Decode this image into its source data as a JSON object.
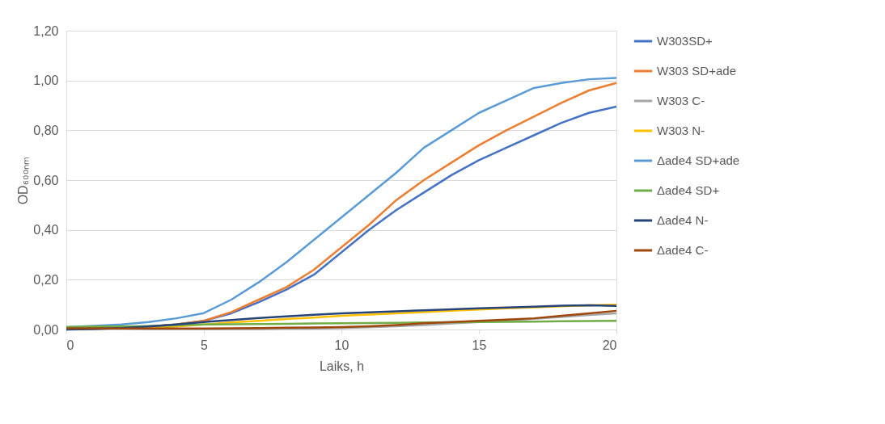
{
  "chart_data": {
    "type": "line",
    "xlabel": "Laiks, h",
    "ylabel": "OD₆₀₀ₙₘ",
    "x": [
      0,
      1,
      2,
      3,
      4,
      5,
      6,
      7,
      8,
      9,
      10,
      11,
      12,
      13,
      14,
      15,
      16,
      17,
      18,
      19,
      20
    ],
    "xlim": [
      0,
      20
    ],
    "xticks": [
      0,
      5,
      10,
      15,
      20
    ],
    "ylim": [
      0,
      1.2
    ],
    "yticks": [
      {
        "value": 0,
        "label": "0,00"
      },
      {
        "value": 0.2,
        "label": "0,20"
      },
      {
        "value": 0.4,
        "label": "0,40"
      },
      {
        "value": 0.6,
        "label": "0,60"
      },
      {
        "value": 0.8,
        "label": "0,80"
      },
      {
        "value": 1.0,
        "label": "1,00"
      },
      {
        "value": 1.2,
        "label": "1,20"
      }
    ],
    "grid": "y",
    "legend": "right",
    "line_style": "solid",
    "marker": "none",
    "series": [
      {
        "name": "W303SD+",
        "color": "#4472c4",
        "values": [
          0.005,
          0.005,
          0.008,
          0.012,
          0.02,
          0.035,
          0.065,
          0.11,
          0.16,
          0.22,
          0.31,
          0.4,
          0.48,
          0.55,
          0.62,
          0.68,
          0.73,
          0.78,
          0.83,
          0.87,
          0.895
        ]
      },
      {
        "name": "W303 SD+ade",
        "color": "#ed7d31",
        "values": [
          null,
          null,
          null,
          0.012,
          0.02,
          0.035,
          0.07,
          0.12,
          0.17,
          0.24,
          0.33,
          0.42,
          0.52,
          0.6,
          0.67,
          0.74,
          0.8,
          0.855,
          0.91,
          0.96,
          0.99
        ]
      },
      {
        "name": "W303 C-",
        "color": "#a5a5a5",
        "values": [
          0.005,
          0.004,
          0.003,
          0.002,
          0.002,
          0.002,
          0.002,
          0.002,
          0.003,
          0.004,
          0.006,
          0.009,
          0.013,
          0.018,
          0.024,
          0.03,
          0.036,
          0.043,
          0.05,
          0.058,
          0.065
        ]
      },
      {
        "name": "W303 N-",
        "color": "#ffc000",
        "values": [
          null,
          null,
          0.004,
          0.006,
          0.012,
          0.02,
          0.028,
          0.035,
          0.042,
          0.048,
          0.055,
          0.06,
          0.065,
          0.07,
          0.075,
          0.08,
          0.085,
          0.089,
          0.093,
          0.097,
          0.1
        ]
      },
      {
        "name": "Δade4 SD+ade",
        "color": "#5b9bd5",
        "values": [
          0.01,
          0.015,
          0.02,
          0.03,
          0.045,
          0.066,
          0.12,
          0.19,
          0.27,
          0.36,
          0.45,
          0.54,
          0.63,
          0.73,
          0.8,
          0.87,
          0.92,
          0.97,
          0.99,
          1.005,
          1.01
        ]
      },
      {
        "name": "Δade4 SD+",
        "color": "#70ad47",
        "values": [
          0.01,
          0.012,
          0.012,
          0.014,
          0.017,
          0.02,
          0.021,
          0.022,
          0.023,
          0.024,
          0.025,
          0.026,
          0.027,
          0.028,
          0.029,
          0.03,
          0.031,
          0.032,
          0.033,
          0.034,
          0.035
        ]
      },
      {
        "name": "Δade4 N-",
        "color": "#264478",
        "values": [
          0.0,
          0.002,
          0.006,
          0.012,
          0.02,
          0.03,
          0.038,
          0.046,
          0.053,
          0.059,
          0.065,
          0.069,
          0.073,
          0.077,
          0.081,
          0.085,
          0.088,
          0.092,
          0.096,
          0.097,
          0.095
        ]
      },
      {
        "name": "Δade4 C-",
        "color": "#9e480e",
        "values": [
          0.005,
          0.005,
          0.004,
          0.004,
          0.004,
          0.004,
          0.005,
          0.006,
          0.007,
          0.008,
          0.01,
          0.013,
          0.018,
          0.025,
          0.03,
          0.035,
          0.04,
          0.045,
          0.055,
          0.065,
          0.075
        ]
      }
    ]
  }
}
